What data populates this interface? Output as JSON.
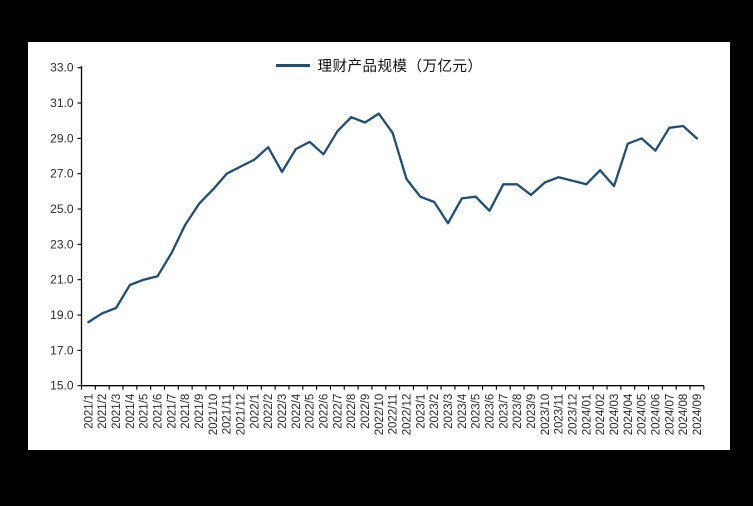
{
  "canvas": {
    "background": "#000000",
    "panel_background": "#ffffff"
  },
  "legend": {
    "label": "理财产品规模（万亿元）",
    "swatch_color": "#1F4E79"
  },
  "chart_data": {
    "type": "line",
    "title": "",
    "xlabel": "",
    "ylabel": "",
    "grid": false,
    "legend_position": "top-center",
    "ylim": [
      15.0,
      33.0
    ],
    "yticks": [
      15.0,
      17.0,
      19.0,
      21.0,
      23.0,
      25.0,
      27.0,
      29.0,
      31.0,
      33.0
    ],
    "ytick_labels": [
      "15.0",
      "17.0",
      "19.0",
      "21.0",
      "23.0",
      "25.0",
      "27.0",
      "29.0",
      "31.0",
      "33.0"
    ],
    "categories": [
      "2021/1",
      "2021/2",
      "2021/3",
      "2021/4",
      "2021/5",
      "2021/6",
      "2021/7",
      "2021/8",
      "2021/9",
      "2021/10",
      "2021/11",
      "2021/12",
      "2022/1",
      "2022/2",
      "2022/3",
      "2022/4",
      "2022/5",
      "2022/6",
      "2022/7",
      "2022/8",
      "2022/9",
      "2022/10",
      "2022/11",
      "2022/12",
      "2023/1",
      "2023/2",
      "2023/3",
      "2023/4",
      "2023/5",
      "2023/6",
      "2023/7",
      "2023/8",
      "2023/9",
      "2023/10",
      "2023/11",
      "2023/12",
      "2024/01",
      "2024/02",
      "2024/03",
      "2024/04",
      "2024/05",
      "2024/06",
      "2024/07",
      "2024/08",
      "2024/09"
    ],
    "series": [
      {
        "name": "理财产品规模（万亿元）",
        "color": "#1F4E79",
        "values": [
          18.6,
          19.1,
          19.4,
          20.7,
          21.0,
          21.2,
          22.5,
          24.1,
          25.3,
          26.1,
          27.0,
          27.4,
          27.8,
          28.5,
          27.1,
          28.4,
          28.8,
          28.1,
          29.4,
          30.2,
          29.9,
          30.4,
          29.3,
          26.7,
          25.7,
          25.4,
          24.2,
          25.6,
          25.7,
          24.9,
          26.4,
          26.4,
          25.8,
          26.5,
          26.8,
          26.6,
          26.4,
          27.2,
          26.3,
          28.7,
          29.0,
          28.3,
          29.6,
          29.7,
          29.0
        ]
      }
    ]
  }
}
